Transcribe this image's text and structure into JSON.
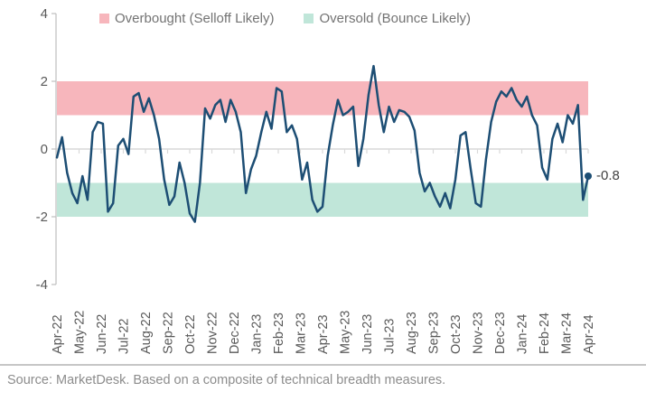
{
  "chart": {
    "legend": [
      {
        "label": "Overbought (Selloff Likely)",
        "color": "#f7b6bc"
      },
      {
        "label": "Oversold (Bounce Likely)",
        "color": "#c0e6d9"
      }
    ],
    "last_value_label": "-0.8"
  },
  "chart_data": {
    "type": "line",
    "x_categories": [
      "Apr-22",
      "May-22",
      "Jun-22",
      "Jul-22",
      "Aug-22",
      "Sep-22",
      "Oct-22",
      "Nov-22",
      "Dec-22",
      "Jan-23",
      "Feb-23",
      "Mar-23",
      "Apr-23",
      "May-23",
      "Jun-23",
      "Jul-23",
      "Aug-23",
      "Sep-23",
      "Oct-23",
      "Nov-23",
      "Dec-23",
      "Jan-24",
      "Feb-24",
      "Mar-24",
      "Apr-24"
    ],
    "y_ticks": [
      4,
      2,
      0,
      -2,
      -4
    ],
    "ylim": [
      -4,
      4
    ],
    "grid": "zero-line-only",
    "legend_position": "top",
    "bands": [
      {
        "name": "Overbought (Selloff Likely)",
        "from": 1,
        "to": 2,
        "color": "#f7b6bc"
      },
      {
        "name": "Oversold (Bounce Likely)",
        "from": -2,
        "to": -1,
        "color": "#c0e6d9"
      }
    ],
    "series": [
      {
        "name": "Composite of technical breadth measures",
        "color": "#1d4e74",
        "sampling": "weekly from Apr-22 to Apr-24",
        "values": [
          -0.25,
          0.35,
          -0.7,
          -1.3,
          -1.6,
          -0.8,
          -1.5,
          0.5,
          0.8,
          0.75,
          -1.85,
          -1.6,
          0.1,
          0.3,
          -0.15,
          1.55,
          1.65,
          1.1,
          1.5,
          1.0,
          0.3,
          -0.9,
          -1.65,
          -1.4,
          -0.4,
          -1.0,
          -1.9,
          -2.15,
          -1.0,
          1.2,
          0.9,
          1.3,
          1.45,
          0.8,
          1.45,
          1.1,
          0.5,
          -1.3,
          -0.6,
          -0.2,
          0.5,
          1.1,
          0.6,
          1.8,
          1.7,
          0.5,
          0.7,
          0.3,
          -0.9,
          -0.4,
          -1.5,
          -1.85,
          -1.7,
          -0.2,
          0.7,
          1.45,
          1.0,
          1.1,
          1.25,
          -0.5,
          0.3,
          1.6,
          2.45,
          1.3,
          0.5,
          1.25,
          0.8,
          1.15,
          1.1,
          0.95,
          0.55,
          -0.7,
          -1.25,
          -1.0,
          -1.4,
          -1.7,
          -1.3,
          -1.75,
          -0.9,
          0.4,
          0.5,
          -0.6,
          -1.6,
          -1.7,
          -0.3,
          0.8,
          1.4,
          1.7,
          1.55,
          1.8,
          1.45,
          1.25,
          1.55,
          1.0,
          0.7,
          -0.55,
          -0.9,
          0.3,
          0.75,
          0.2,
          1.0,
          0.75,
          1.3,
          -1.5,
          -0.8
        ]
      }
    ],
    "last_value": -0.8
  },
  "footer": {
    "source": "Source: MarketDesk. Based on a composite of technical breadth measures."
  },
  "colors": {
    "line": "#1d4e74",
    "overbought_band": "#f7b6bc",
    "oversold_band": "#c0e6d9",
    "axis": "#bfbfbf",
    "gridline": "#d9d9d9",
    "tick_label": "#595959",
    "legend_text": "#737373",
    "source_text": "#8c8c8c",
    "last_value_text": "#404040"
  }
}
